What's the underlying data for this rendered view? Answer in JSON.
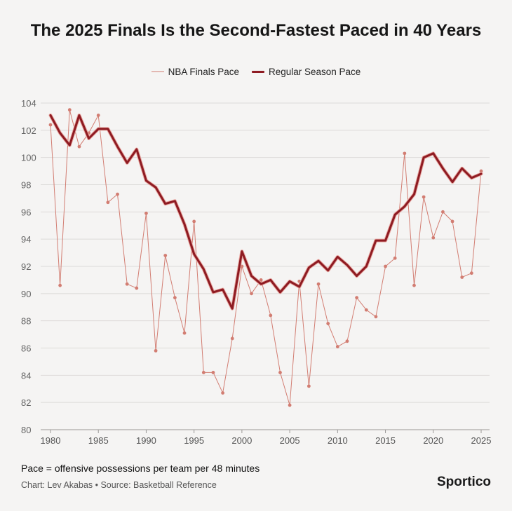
{
  "title": "The 2025 Finals Is the Second-Fastest Paced in 40 Years",
  "note": "Pace = offensive possessions per team per 48 minutes",
  "credits": "Chart: Lev Akabas • Source: Basketball Reference",
  "brand": "Sportico",
  "chart_data": {
    "type": "line",
    "title": "The 2025 Finals Is the Second-Fastest Paced in 40 Years",
    "xlabel": "",
    "ylabel": "",
    "xlim": [
      1980,
      2025
    ],
    "ylim": [
      80,
      104
    ],
    "x_ticks": [
      1980,
      1985,
      1990,
      1995,
      2000,
      2005,
      2010,
      2015,
      2020,
      2025
    ],
    "y_ticks": [
      80,
      82,
      84,
      86,
      88,
      90,
      92,
      94,
      96,
      98,
      100,
      102,
      104
    ],
    "grid": true,
    "legend_position": "top-center",
    "x": [
      1980,
      1981,
      1982,
      1983,
      1984,
      1985,
      1986,
      1987,
      1988,
      1989,
      1990,
      1991,
      1992,
      1993,
      1994,
      1995,
      1996,
      1997,
      1998,
      1999,
      2000,
      2001,
      2002,
      2003,
      2004,
      2005,
      2006,
      2007,
      2008,
      2009,
      2010,
      2011,
      2012,
      2013,
      2014,
      2015,
      2016,
      2017,
      2018,
      2019,
      2020,
      2021,
      2022,
      2023,
      2024,
      2025
    ],
    "series": [
      {
        "name": "NBA Finals Pace",
        "color": "#d27d72",
        "values": [
          102.4,
          90.6,
          103.5,
          100.8,
          101.8,
          103.1,
          96.7,
          97.3,
          90.7,
          90.4,
          95.9,
          85.8,
          92.8,
          89.7,
          87.1,
          95.3,
          84.2,
          84.2,
          82.7,
          86.7,
          92.0,
          90.0,
          91.0,
          88.4,
          84.2,
          81.8,
          90.9,
          83.2,
          90.7,
          87.8,
          86.1,
          86.5,
          89.7,
          88.8,
          88.3,
          92.0,
          92.6,
          100.3,
          90.6,
          97.1,
          94.1,
          96.0,
          95.3,
          91.2,
          91.5,
          99.0
        ]
      },
      {
        "name": "Regular Season Pace",
        "color": "#8e1b22",
        "values": [
          103.1,
          101.8,
          100.9,
          103.1,
          101.4,
          102.1,
          102.1,
          100.8,
          99.6,
          100.6,
          98.3,
          97.8,
          96.6,
          96.8,
          95.1,
          92.9,
          91.8,
          90.1,
          90.3,
          88.9,
          93.1,
          91.3,
          90.7,
          91.0,
          90.1,
          90.9,
          90.5,
          91.9,
          92.4,
          91.7,
          92.7,
          92.1,
          91.3,
          92.0,
          93.9,
          93.9,
          95.8,
          96.4,
          97.3,
          100.0,
          100.3,
          99.2,
          98.2,
          99.2,
          98.5,
          98.8
        ]
      }
    ]
  }
}
